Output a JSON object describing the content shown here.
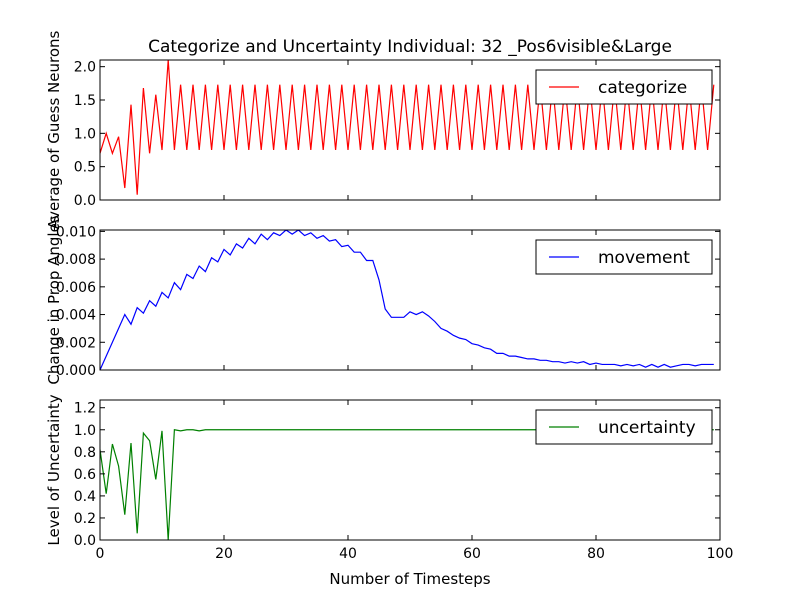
{
  "chart_data": [
    {
      "type": "line",
      "title": "Categorize and Uncertainty Individual: 32 _Pos6visible&Large",
      "ylabel": "Average of Guess Neurons",
      "x": [
        0,
        1,
        2,
        3,
        4,
        5,
        6,
        7,
        8,
        9,
        10,
        11,
        12,
        13,
        14,
        15,
        16,
        17,
        18,
        19,
        20,
        21,
        22,
        23,
        24,
        25,
        26,
        27,
        28,
        29,
        30,
        31,
        32,
        33,
        34,
        35,
        36,
        37,
        38,
        39,
        40,
        41,
        42,
        43,
        44,
        45,
        46,
        47,
        48,
        49,
        50,
        51,
        52,
        53,
        54,
        55,
        56,
        57,
        58,
        59,
        60,
        61,
        62,
        63,
        64,
        65,
        66,
        67,
        68,
        69,
        70,
        71,
        72,
        73,
        74,
        75,
        76,
        77,
        78,
        79,
        80,
        81,
        82,
        83,
        84,
        85,
        86,
        87,
        88,
        89,
        90,
        91,
        92,
        93,
        94,
        95,
        96,
        97,
        98,
        99
      ],
      "series": [
        {
          "name": "categorize",
          "color": "#ff0000",
          "values": [
            0.7,
            1.0,
            0.7,
            0.95,
            0.18,
            1.43,
            0.08,
            1.68,
            0.7,
            1.58,
            0.75,
            2.1,
            0.75,
            1.73,
            0.75,
            1.73,
            0.75,
            1.73,
            0.75,
            1.73,
            0.75,
            1.73,
            0.75,
            1.73,
            0.75,
            1.73,
            0.75,
            1.73,
            0.75,
            1.73,
            0.75,
            1.73,
            0.75,
            1.73,
            0.75,
            1.73,
            0.75,
            1.73,
            0.75,
            1.73,
            0.75,
            1.73,
            0.75,
            1.73,
            0.75,
            1.73,
            0.75,
            1.73,
            0.75,
            1.73,
            0.75,
            1.73,
            0.75,
            1.73,
            0.75,
            1.73,
            0.75,
            1.73,
            0.75,
            1.73,
            0.75,
            1.73,
            0.75,
            1.73,
            0.75,
            1.73,
            0.75,
            1.73,
            0.75,
            1.73,
            0.75,
            1.73,
            0.75,
            1.73,
            0.75,
            1.73,
            0.75,
            1.73,
            0.75,
            1.73,
            0.75,
            1.73,
            0.75,
            1.73,
            0.75,
            1.73,
            0.75,
            1.73,
            0.75,
            1.73,
            0.75,
            1.73,
            0.75,
            1.73,
            0.75,
            1.73,
            0.75,
            1.73,
            0.75,
            1.73
          ]
        }
      ],
      "xlim": [
        0,
        100
      ],
      "xticks": [
        0,
        20,
        40,
        60,
        80,
        100
      ],
      "xtick_labels": false,
      "ylim": [
        0,
        2.1
      ],
      "yticks": [
        {
          "value": 0,
          "label": "0.0"
        },
        {
          "value": 0.5,
          "label": "0.5"
        },
        {
          "value": 1,
          "label": "1.0"
        },
        {
          "value": 1.5,
          "label": "1.5"
        },
        {
          "value": 2,
          "label": "2.0"
        }
      ],
      "legend": "upper right"
    },
    {
      "type": "line",
      "ylabel": "Change in Prop Angles",
      "x": [
        0,
        1,
        2,
        3,
        4,
        5,
        6,
        7,
        8,
        9,
        10,
        11,
        12,
        13,
        14,
        15,
        16,
        17,
        18,
        19,
        20,
        21,
        22,
        23,
        24,
        25,
        26,
        27,
        28,
        29,
        30,
        31,
        32,
        33,
        34,
        35,
        36,
        37,
        38,
        39,
        40,
        41,
        42,
        43,
        44,
        45,
        46,
        47,
        48,
        49,
        50,
        51,
        52,
        53,
        54,
        55,
        56,
        57,
        58,
        59,
        60,
        61,
        62,
        63,
        64,
        65,
        66,
        67,
        68,
        69,
        70,
        71,
        72,
        73,
        74,
        75,
        76,
        77,
        78,
        79,
        80,
        81,
        82,
        83,
        84,
        85,
        86,
        87,
        88,
        89,
        90,
        91,
        92,
        93,
        94,
        95,
        96,
        97,
        98,
        99
      ],
      "series": [
        {
          "name": "movement",
          "color": "#0000ff",
          "values": [
            0,
            0.001,
            0.002,
            0.003,
            0.004,
            0.0033,
            0.0045,
            0.0041,
            0.005,
            0.0046,
            0.0056,
            0.0052,
            0.0063,
            0.0058,
            0.0069,
            0.0066,
            0.0075,
            0.0071,
            0.0081,
            0.0078,
            0.0087,
            0.0083,
            0.0091,
            0.0088,
            0.0095,
            0.0091,
            0.0098,
            0.0094,
            0.0099,
            0.0097,
            0.0101,
            0.0098,
            0.0101,
            0.0097,
            0.0099,
            0.0095,
            0.0097,
            0.0093,
            0.0094,
            0.0089,
            0.009,
            0.0085,
            0.0085,
            0.0079,
            0.0079,
            0.0065,
            0.0044,
            0.0038,
            0.0038,
            0.0038,
            0.0042,
            0.004,
            0.0042,
            0.0039,
            0.0035,
            0.003,
            0.0028,
            0.0025,
            0.0023,
            0.0022,
            0.0019,
            0.0018,
            0.0016,
            0.0015,
            0.0012,
            0.0012,
            0.001,
            0.001,
            0.0009,
            0.0008,
            0.0008,
            0.0007,
            0.0007,
            0.0006,
            0.0006,
            0.0005,
            0.0006,
            0.0005,
            0.0006,
            0.0004,
            0.0005,
            0.0004,
            0.0004,
            0.0004,
            0.0003,
            0.0004,
            0.0003,
            0.0004,
            0.0002,
            0.0004,
            0.0002,
            0.0004,
            0.0002,
            0.0003,
            0.0004,
            0.0004,
            0.0003,
            0.0004,
            0.0004,
            0.0004
          ]
        }
      ],
      "xlim": [
        0,
        100
      ],
      "xticks": [
        0,
        20,
        40,
        60,
        80,
        100
      ],
      "xtick_labels": false,
      "ylim": [
        0,
        0.0101
      ],
      "yticks": [
        {
          "value": 0,
          "label": "0.000"
        },
        {
          "value": 0.002,
          "label": "0.002"
        },
        {
          "value": 0.004,
          "label": "0.004"
        },
        {
          "value": 0.006,
          "label": "0.006"
        },
        {
          "value": 0.008,
          "label": "0.008"
        },
        {
          "value": 0.01,
          "label": "0.010"
        }
      ],
      "legend": "upper right"
    },
    {
      "type": "line",
      "ylabel": "Level of Uncertainty",
      "xlabel": "Number of Timesteps",
      "x": [
        0,
        1,
        2,
        3,
        4,
        5,
        6,
        7,
        8,
        9,
        10,
        11,
        12,
        13,
        14,
        15,
        16,
        17,
        18,
        19,
        20,
        21,
        22,
        23,
        24,
        25,
        26,
        27,
        28,
        29,
        30,
        31,
        32,
        33,
        34,
        35,
        36,
        37,
        38,
        39,
        40,
        41,
        42,
        43,
        44,
        45,
        46,
        47,
        48,
        49,
        50,
        51,
        52,
        53,
        54,
        55,
        56,
        57,
        58,
        59,
        60,
        61,
        62,
        63,
        64,
        65,
        66,
        67,
        68,
        69,
        70,
        71,
        72,
        73,
        74,
        75,
        76,
        77,
        78,
        79,
        80,
        81,
        82,
        83,
        84,
        85,
        86,
        87,
        88,
        89,
        90,
        91,
        92,
        93,
        94,
        95,
        96,
        97,
        98,
        99
      ],
      "series": [
        {
          "name": "uncertainty",
          "color": "#008000",
          "values": [
            0.82,
            0.42,
            0.87,
            0.67,
            0.23,
            0.88,
            0.06,
            0.97,
            0.9,
            0.55,
            0.99,
            0,
            1,
            0.99,
            1,
            1,
            0.99,
            1,
            1,
            1,
            1,
            1,
            1,
            1,
            1,
            1,
            1,
            1,
            1,
            1,
            1,
            1,
            1,
            1,
            1,
            1,
            1,
            1,
            1,
            1,
            1,
            1,
            1,
            1,
            1,
            1,
            1,
            1,
            1,
            1,
            1,
            1,
            1,
            1,
            1,
            1,
            1,
            1,
            1,
            1,
            1,
            1,
            1,
            1,
            1,
            1,
            1,
            1,
            1,
            1,
            1,
            1,
            1,
            1,
            1,
            1,
            1,
            1,
            1,
            1,
            1,
            1,
            1,
            1,
            1,
            1,
            1,
            1,
            1,
            1,
            1,
            1,
            1,
            1,
            1,
            1,
            1,
            1,
            1,
            1
          ]
        }
      ],
      "xlim": [
        0,
        100
      ],
      "xticks": [
        0,
        20,
        40,
        60,
        80,
        100
      ],
      "ylim": [
        0,
        1.27
      ],
      "yticks": [
        {
          "value": 0,
          "label": "0.0"
        },
        {
          "value": 0.2,
          "label": "0.2"
        },
        {
          "value": 0.4,
          "label": "0.4"
        },
        {
          "value": 0.6,
          "label": "0.6"
        },
        {
          "value": 0.8,
          "label": "0.8"
        },
        {
          "value": 1,
          "label": "1.0"
        },
        {
          "value": 1.2,
          "label": "1.2"
        }
      ],
      "legend": "upper right"
    }
  ]
}
